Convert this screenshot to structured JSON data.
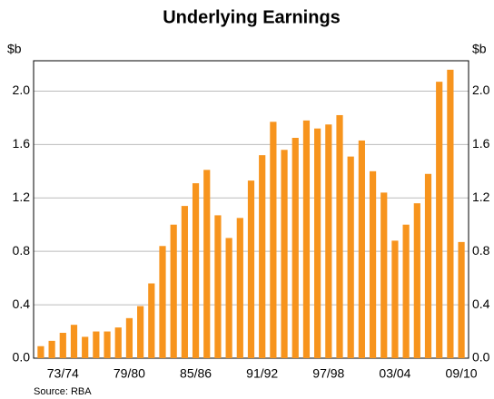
{
  "chart_data": {
    "type": "bar",
    "title": "Underlying Earnings",
    "y_label": "$b",
    "y2_label": "$b",
    "source": "Source: RBA",
    "categories": [
      null,
      null,
      "73/74",
      null,
      null,
      null,
      null,
      null,
      "79/80",
      null,
      null,
      null,
      null,
      null,
      "85/86",
      null,
      null,
      null,
      null,
      null,
      "91/92",
      null,
      null,
      null,
      null,
      null,
      "97/98",
      null,
      null,
      null,
      null,
      null,
      "03/04",
      null,
      null,
      null,
      null,
      null,
      "09/10"
    ],
    "values": [
      0.09,
      0.13,
      0.19,
      0.25,
      0.16,
      0.2,
      0.2,
      0.23,
      0.3,
      0.39,
      0.56,
      0.84,
      1.0,
      1.14,
      1.31,
      1.41,
      1.07,
      0.9,
      1.05,
      1.33,
      1.52,
      1.77,
      1.56,
      1.65,
      1.78,
      1.72,
      1.75,
      1.82,
      1.51,
      1.63,
      1.4,
      1.24,
      0.88,
      1.0,
      1.16,
      1.38,
      2.07,
      2.16,
      0.87
    ],
    "color": "#f7941d",
    "ylim": [
      0,
      2.2
    ],
    "yticks": [
      {
        "value": 0,
        "label": "0.0"
      },
      {
        "value": 0.4,
        "label": "0.4"
      },
      {
        "value": 0.8,
        "label": "0.8"
      },
      {
        "value": 1.2,
        "label": "1.2"
      },
      {
        "value": 1.6,
        "label": "1.6"
      },
      {
        "value": 2.0,
        "label": "2.0"
      }
    ],
    "y2lim": [
      0,
      2.2
    ],
    "y2ticks": [
      {
        "value": 0,
        "label": "0.0"
      },
      {
        "value": 0.4,
        "label": "0.4"
      },
      {
        "value": 0.8,
        "label": "0.8"
      },
      {
        "value": 1.2,
        "label": "1.2"
      },
      {
        "value": 1.6,
        "label": "1.6"
      },
      {
        "value": 2.0,
        "label": "2.0"
      }
    ],
    "grid": true
  }
}
